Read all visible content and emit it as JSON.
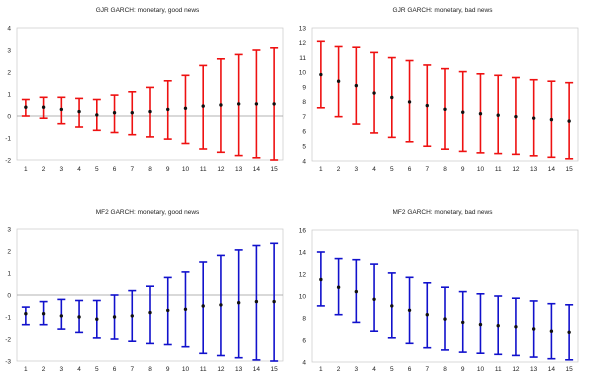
{
  "chart_data": [
    {
      "type": "errorbar",
      "title": "GJR GARCH: monetary, good news",
      "categories": [
        "1",
        "2",
        "3",
        "4",
        "5",
        "6",
        "7",
        "8",
        "9",
        "10",
        "11",
        "12",
        "13",
        "14",
        "15"
      ],
      "ylim": [
        -2,
        4
      ],
      "yticks": [
        -2,
        -1,
        0,
        1,
        2,
        3,
        4
      ],
      "grid": false,
      "zero_line": true,
      "bar_color": "#ee1111",
      "point_color": "#111111",
      "series": [
        {
          "values": [
            0.4,
            0.4,
            0.3,
            0.2,
            0.05,
            0.15,
            0.15,
            0.2,
            0.3,
            0.35,
            0.45,
            0.5,
            0.55,
            0.55,
            0.55
          ],
          "lower": [
            0.0,
            -0.1,
            -0.35,
            -0.5,
            -0.65,
            -0.75,
            -0.85,
            -0.95,
            -1.05,
            -1.25,
            -1.5,
            -1.65,
            -1.8,
            -1.9,
            -2.0
          ],
          "upper": [
            0.75,
            0.85,
            0.85,
            0.8,
            0.75,
            0.95,
            1.1,
            1.3,
            1.6,
            1.85,
            2.3,
            2.6,
            2.8,
            3.0,
            3.1
          ]
        }
      ]
    },
    {
      "type": "errorbar",
      "title": "GJR GARCH: monetary, bad news",
      "categories": [
        "1",
        "2",
        "3",
        "4",
        "5",
        "6",
        "7",
        "8",
        "9",
        "10",
        "11",
        "12",
        "13",
        "14",
        "15"
      ],
      "ylim": [
        4,
        13
      ],
      "yticks": [
        4,
        5,
        6,
        7,
        8,
        9,
        10,
        11,
        12,
        13
      ],
      "grid": false,
      "zero_line": false,
      "bar_color": "#ee1111",
      "point_color": "#111111",
      "series": [
        {
          "values": [
            9.85,
            9.4,
            9.1,
            8.6,
            8.3,
            8.0,
            7.75,
            7.5,
            7.3,
            7.2,
            7.1,
            7.0,
            6.9,
            6.8,
            6.7
          ],
          "lower": [
            7.6,
            7.0,
            6.5,
            5.9,
            5.6,
            5.3,
            5.0,
            4.8,
            4.65,
            4.55,
            4.5,
            4.45,
            4.35,
            4.25,
            4.15
          ],
          "upper": [
            12.1,
            11.75,
            11.7,
            11.35,
            11.0,
            10.8,
            10.5,
            10.25,
            10.05,
            9.9,
            9.8,
            9.65,
            9.5,
            9.4,
            9.3
          ]
        }
      ]
    },
    {
      "type": "errorbar",
      "title": "MF2 GARCH: monetary, good news",
      "categories": [
        "1",
        "2",
        "3",
        "4",
        "5",
        "6",
        "7",
        "8",
        "9",
        "10",
        "11",
        "12",
        "13",
        "14",
        "15"
      ],
      "ylim": [
        -3,
        3
      ],
      "yticks": [
        -3,
        -2,
        -1,
        0,
        1,
        2,
        3
      ],
      "grid": false,
      "zero_line": true,
      "bar_color": "#1111cc",
      "point_color": "#111111",
      "series": [
        {
          "values": [
            -0.85,
            -0.85,
            -0.95,
            -1.0,
            -1.1,
            -1.0,
            -0.95,
            -0.8,
            -0.7,
            -0.65,
            -0.5,
            -0.45,
            -0.35,
            -0.3,
            -0.3
          ],
          "lower": [
            -1.35,
            -1.35,
            -1.55,
            -1.7,
            -1.95,
            -2.0,
            -2.1,
            -2.2,
            -2.25,
            -2.35,
            -2.65,
            -2.75,
            -2.85,
            -2.95,
            -3.0
          ],
          "upper": [
            -0.55,
            -0.3,
            -0.2,
            -0.25,
            -0.25,
            0.0,
            0.2,
            0.4,
            0.8,
            1.05,
            1.5,
            1.8,
            2.05,
            2.25,
            2.35
          ]
        }
      ]
    },
    {
      "type": "errorbar",
      "title": "MF2 GARCH: monetary, bad news",
      "categories": [
        "1",
        "2",
        "3",
        "4",
        "5",
        "6",
        "7",
        "8",
        "9",
        "10",
        "11",
        "12",
        "13",
        "14",
        "15"
      ],
      "ylim": [
        4,
        16
      ],
      "yticks": [
        4,
        6,
        8,
        10,
        12,
        14,
        16
      ],
      "grid": false,
      "zero_line": false,
      "bar_color": "#1111cc",
      "point_color": "#111111",
      "series": [
        {
          "values": [
            11.5,
            10.8,
            10.4,
            9.7,
            9.1,
            8.7,
            8.3,
            7.9,
            7.6,
            7.4,
            7.3,
            7.2,
            7.0,
            6.8,
            6.7
          ],
          "lower": [
            9.1,
            8.3,
            7.6,
            6.8,
            6.2,
            5.7,
            5.3,
            5.1,
            4.9,
            4.8,
            4.7,
            4.6,
            4.45,
            4.3,
            4.2
          ],
          "upper": [
            14.0,
            13.4,
            13.3,
            12.9,
            12.1,
            11.7,
            11.2,
            10.8,
            10.4,
            10.2,
            10.0,
            9.8,
            9.55,
            9.3,
            9.2
          ]
        }
      ]
    }
  ]
}
